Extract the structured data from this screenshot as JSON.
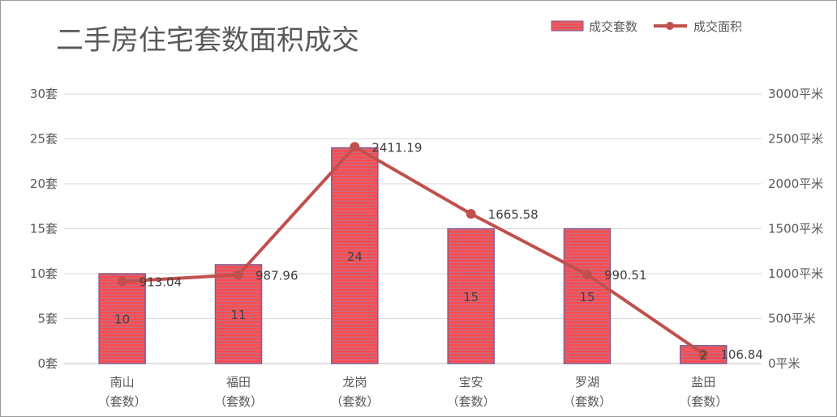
{
  "chart_data": {
    "type": "bar",
    "title": "二手房住宅套数面积成交",
    "categories": [
      [
        "南山",
        "（套数）"
      ],
      [
        "福田",
        "（套数）"
      ],
      [
        "龙岗",
        "（套数）"
      ],
      [
        "宝安",
        "（套数）"
      ],
      [
        "罗湖",
        "（套数）"
      ],
      [
        "盐田",
        "（套数）"
      ]
    ],
    "series": [
      {
        "name": "成交套数",
        "type": "bar",
        "axis": "left",
        "values": [
          10,
          11,
          24,
          15,
          15,
          2
        ],
        "color": "#e8474e",
        "border_color": "#8a5a8a"
      },
      {
        "name": "成交面积",
        "type": "line",
        "axis": "right",
        "values": [
          913.04,
          987.96,
          2411.19,
          1665.58,
          990.51,
          106.84
        ],
        "color": "#c0504d"
      }
    ],
    "y_left": {
      "min": 0,
      "max": 30,
      "step": 5,
      "unit": "套"
    },
    "y_right": {
      "min": 0,
      "max": 3000,
      "step": 500,
      "unit": "平米"
    },
    "grid": true,
    "legend_position": "top-right"
  }
}
